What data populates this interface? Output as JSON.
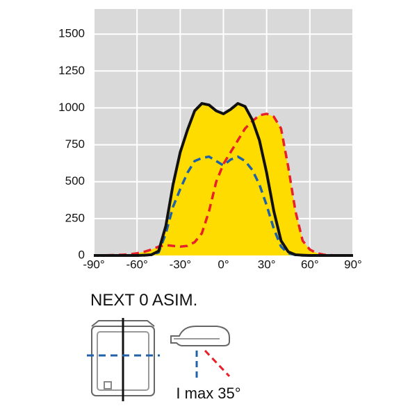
{
  "chart_data": {
    "type": "line",
    "x": [
      -90,
      -85,
      -80,
      -75,
      -70,
      -65,
      -60,
      -55,
      -50,
      -45,
      -40,
      -35,
      -30,
      -25,
      -20,
      -15,
      -10,
      -5,
      0,
      5,
      10,
      15,
      20,
      25,
      30,
      35,
      40,
      45,
      50,
      55,
      60,
      65,
      70,
      75,
      80,
      85,
      90
    ],
    "series": [
      {
        "color": "#111111",
        "dash": false,
        "fill": true,
        "values": [
          0,
          0,
          0,
          0,
          0,
          0,
          0,
          2,
          5,
          30,
          200,
          480,
          700,
          850,
          980,
          1030,
          1020,
          980,
          960,
          990,
          1030,
          1010,
          920,
          780,
          560,
          300,
          100,
          25,
          5,
          2,
          0,
          0,
          0,
          0,
          0,
          0,
          0
        ]
      },
      {
        "color": "#e8202a",
        "dash": true,
        "fill": true,
        "values": [
          0,
          0,
          2,
          3,
          5,
          8,
          15,
          25,
          40,
          60,
          70,
          65,
          60,
          65,
          90,
          150,
          300,
          500,
          620,
          700,
          780,
          860,
          910,
          950,
          960,
          940,
          860,
          600,
          300,
          100,
          40,
          15,
          5,
          2,
          0,
          0,
          0
        ]
      },
      {
        "color": "#1f62a8",
        "dash": true,
        "fill": false,
        "values": [
          0,
          0,
          0,
          0,
          0,
          0,
          0,
          0,
          5,
          20,
          150,
          330,
          450,
          560,
          640,
          660,
          670,
          640,
          610,
          650,
          670,
          640,
          580,
          480,
          340,
          180,
          60,
          15,
          3,
          0,
          0,
          0,
          0,
          0,
          0,
          0,
          0
        ]
      }
    ],
    "fill_color": "#ffdc00",
    "xlim": [
      -90,
      90
    ],
    "xticks": [
      {
        "value": -90,
        "label": "-90°"
      },
      {
        "value": -60,
        "label": "-60°"
      },
      {
        "value": -30,
        "label": "-30°"
      },
      {
        "value": 0,
        "label": "0°"
      },
      {
        "value": 30,
        "label": "30°"
      },
      {
        "value": 60,
        "label": "60°"
      },
      {
        "value": 90,
        "label": "90°"
      }
    ],
    "ylim": [
      0,
      1670
    ],
    "yticks": [
      0,
      250,
      500,
      750,
      1000,
      1250,
      1500
    ],
    "grid": true
  },
  "caption": "NEXT 0 ASIM.",
  "imax_label": "I max 35°"
}
